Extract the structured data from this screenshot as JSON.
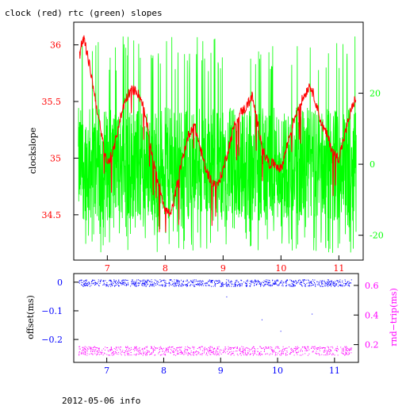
{
  "header": {
    "title": "clock (red) rtc (green) slopes"
  },
  "footer": {
    "info": "2012-05-06 info"
  },
  "colors": {
    "red": "#ff0000",
    "green": "#00ff00",
    "blue": "#0000ff",
    "magenta": "#ff00ff",
    "frame": "#000000"
  },
  "chart_data": [
    {
      "type": "line",
      "ylabel": "clockslope",
      "y2label": "",
      "xlim": [
        6.42,
        11.42
      ],
      "ylim": [
        34.1,
        36.2
      ],
      "y2lim": [
        -27,
        40
      ],
      "x_ticks": [
        7,
        8,
        9,
        10,
        11
      ],
      "y_ticks": [
        34.5,
        35,
        35.5,
        36
      ],
      "y_tick_labels": [
        "34.5",
        "35",
        "35.5",
        "36"
      ],
      "y2_ticks": [
        -20,
        0,
        20
      ],
      "y2_tick_labels": [
        "-20",
        "0",
        "20"
      ],
      "x_tick_labels": [
        "7",
        "8",
        "9",
        "10",
        "11"
      ],
      "series": [
        {
          "color": "red",
          "axis": "left",
          "x": [
            6.52,
            6.55,
            6.6,
            6.7,
            6.8,
            6.9,
            7.0,
            7.1,
            7.2,
            7.3,
            7.4,
            7.5,
            7.6,
            7.7,
            7.8,
            7.9,
            8.0,
            8.1,
            8.2,
            8.3,
            8.4,
            8.5,
            8.6,
            8.7,
            8.8,
            8.9,
            9.0,
            9.1,
            9.2,
            9.3,
            9.4,
            9.5,
            9.6,
            9.7,
            9.8,
            9.9,
            10.0,
            10.1,
            10.2,
            10.3,
            10.4,
            10.5,
            10.6,
            10.7,
            10.8,
            10.9,
            11.0,
            11.1,
            11.2,
            11.3
          ],
          "values": [
            35.9,
            36.0,
            36.05,
            35.8,
            35.5,
            35.2,
            34.95,
            35.05,
            35.3,
            35.5,
            35.6,
            35.6,
            35.5,
            35.25,
            34.95,
            34.75,
            34.55,
            34.5,
            34.75,
            35.0,
            35.2,
            35.3,
            35.1,
            34.9,
            34.8,
            34.75,
            34.9,
            35.1,
            35.3,
            35.4,
            35.45,
            35.55,
            35.3,
            35.05,
            34.95,
            34.95,
            34.9,
            35.1,
            35.3,
            35.45,
            35.55,
            35.65,
            35.5,
            35.3,
            35.2,
            35.05,
            35.0,
            35.2,
            35.4,
            35.55
          ]
        },
        {
          "color": "green",
          "axis": "right",
          "x": [
            6.5,
            11.3
          ],
          "center": 0,
          "band": [
            -16,
            16
          ],
          "spikes": [
            -25,
            36
          ]
        }
      ]
    },
    {
      "type": "scatter",
      "ylabel": "offset(ms)",
      "y2label": "rnd−trip(ms)",
      "xlim": [
        6.42,
        11.42
      ],
      "ylim": [
        -0.28,
        0.03
      ],
      "y2lim": [
        0.08,
        0.68
      ],
      "x_ticks": [
        7,
        8,
        9,
        10,
        11
      ],
      "x_tick_labels": [
        "7",
        "8",
        "9",
        "10",
        "11"
      ],
      "y_ticks": [
        0,
        -0.1,
        -0.2
      ],
      "y_tick_labels": [
        "0",
        "−0.1",
        "−0.2"
      ],
      "y2_ticks": [
        0.2,
        0.4,
        0.6
      ],
      "y2_tick_labels": [
        "0.2",
        "0.4",
        "0.6"
      ],
      "series": [
        {
          "color": "blue",
          "axis": "left",
          "x": [
            6.5,
            11.3
          ],
          "center": -0.002,
          "spread": 0.012
        },
        {
          "color": "magenta",
          "axis": "right",
          "x": [
            6.5,
            11.3
          ],
          "center": 0.16,
          "spread": 0.03
        }
      ]
    }
  ]
}
